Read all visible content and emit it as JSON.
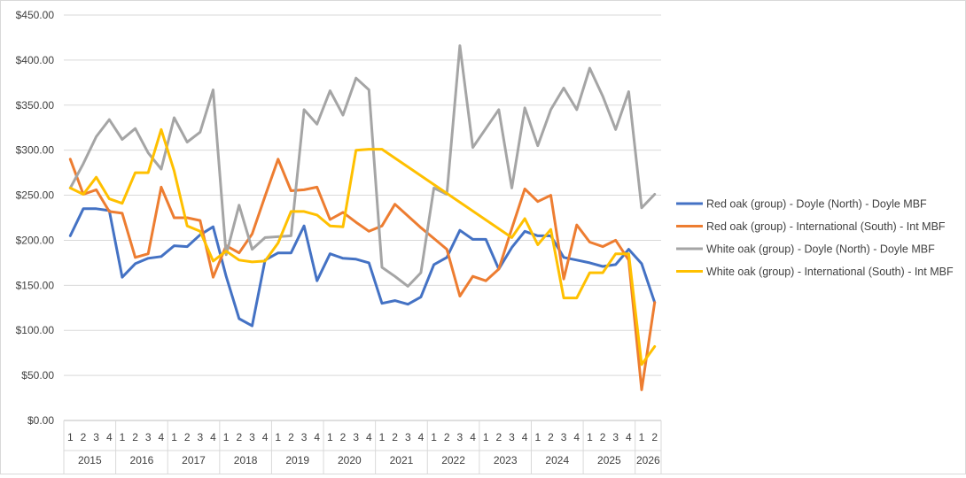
{
  "chart_data": {
    "type": "line",
    "ylim": [
      0,
      450
    ],
    "grid": true,
    "legend_position": "right",
    "y_tick_labels": [
      "$0.00",
      "$50.00",
      "$100.00",
      "$150.00",
      "$200.00",
      "$250.00",
      "$300.00",
      "$350.00",
      "$400.00",
      "$450.00"
    ],
    "y_ticks": [
      0,
      50,
      100,
      150,
      200,
      250,
      300,
      350,
      400,
      450
    ],
    "categories": [
      "2015 Q1",
      "2015 Q2",
      "2015 Q3",
      "2015 Q4",
      "2016 Q1",
      "2016 Q2",
      "2016 Q3",
      "2016 Q4",
      "2017 Q1",
      "2017 Q2",
      "2017 Q3",
      "2017 Q4",
      "2018 Q1",
      "2018 Q2",
      "2018 Q3",
      "2018 Q4",
      "2019 Q1",
      "2019 Q2",
      "2019 Q3",
      "2019 Q4",
      "2020 Q1",
      "2020 Q2",
      "2020 Q3",
      "2020 Q4",
      "2021 Q1",
      "2021 Q2",
      "2021 Q3",
      "2021 Q4",
      "2022 Q1",
      "2022 Q2",
      "2022 Q3",
      "2022 Q4",
      "2023 Q1",
      "2023 Q2",
      "2023 Q3",
      "2023 Q4",
      "2024 Q1",
      "2024 Q2",
      "2024 Q3",
      "2024 Q4",
      "2025 Q1",
      "2025 Q2",
      "2025 Q3",
      "2025 Q4",
      "2026 Q1",
      "2026 Q2"
    ],
    "x_axis_groups": [
      {
        "label": "2015",
        "quarters": [
          "1",
          "2",
          "3",
          "4"
        ]
      },
      {
        "label": "2016",
        "quarters": [
          "1",
          "2",
          "3",
          "4"
        ]
      },
      {
        "label": "2017",
        "quarters": [
          "1",
          "2",
          "3",
          "4"
        ]
      },
      {
        "label": "2018",
        "quarters": [
          "1",
          "2",
          "3",
          "4"
        ]
      },
      {
        "label": "2019",
        "quarters": [
          "1",
          "2",
          "3",
          "4"
        ]
      },
      {
        "label": "2020",
        "quarters": [
          "1",
          "2",
          "3",
          "4"
        ]
      },
      {
        "label": "2021",
        "quarters": [
          "1",
          "2",
          "3",
          "4"
        ]
      },
      {
        "label": "2022",
        "quarters": [
          "1",
          "2",
          "3",
          "4"
        ]
      },
      {
        "label": "2023",
        "quarters": [
          "1",
          "2",
          "3",
          "4"
        ]
      },
      {
        "label": "2024",
        "quarters": [
          "1",
          "2",
          "3",
          "4"
        ]
      },
      {
        "label": "2025",
        "quarters": [
          "1",
          "2",
          "3",
          "4"
        ]
      },
      {
        "label": "2026",
        "quarters": [
          "1",
          "2"
        ]
      }
    ],
    "series": [
      {
        "name": "Red oak (group) - Doyle (North) - Doyle MBF",
        "color": "#4472C4",
        "points_per_quarter": 2,
        "values": [
          205,
          235,
          235,
          233,
          159,
          174,
          180,
          182,
          194,
          193,
          206,
          215,
          160,
          113,
          105,
          178,
          186,
          186,
          216,
          155,
          185,
          180,
          179,
          175,
          130,
          133,
          129,
          137,
          173,
          181,
          211,
          201,
          201,
          168,
          192,
          210,
          205,
          205,
          181,
          178,
          175,
          171,
          173,
          190,
          174,
          131
        ]
      },
      {
        "name": "Red oak (group) - International (South) - Int MBF",
        "color": "#ED7D31",
        "points_per_quarter": 2,
        "values": [
          290,
          251,
          256,
          232,
          230,
          181,
          185,
          259,
          225,
          225,
          222,
          159,
          194,
          186,
          207,
          249,
          290,
          255,
          256,
          259,
          223,
          231,
          220,
          210,
          216,
          240,
          227,
          214,
          202,
          190,
          138,
          160,
          155,
          168,
          213,
          257,
          243,
          250,
          157,
          217,
          198,
          193,
          200,
          178,
          34,
          131
        ]
      },
      {
        "name": "White oak (group) - Doyle (North) - Doyle MBF",
        "color": "#A5A5A5",
        "points_per_quarter": 2,
        "values": [
          258,
          285,
          315,
          334,
          312,
          324,
          297,
          279,
          336,
          309,
          320,
          367,
          184,
          239,
          190,
          203,
          204,
          205,
          345,
          329,
          366,
          339,
          380,
          367,
          170,
          160,
          149,
          164,
          258,
          251,
          416,
          303,
          324,
          345,
          258,
          347,
          305,
          345,
          369,
          345,
          391,
          360,
          323,
          365,
          236,
          251
        ]
      },
      {
        "name": "White oak (group) - International (South) - Int MBF",
        "color": "#FFC000",
        "points_per_quarter": 2,
        "values": [
          258,
          251,
          270,
          246,
          241,
          275,
          275,
          323,
          277,
          216,
          210,
          177,
          188,
          178,
          176,
          177,
          197,
          232,
          232,
          228,
          216,
          215,
          300,
          301,
          301,
          null,
          null,
          null,
          null,
          null,
          null,
          null,
          null,
          null,
          203,
          224,
          195,
          212,
          136,
          136,
          164,
          164,
          185,
          185,
          62,
          82
        ]
      }
    ]
  }
}
